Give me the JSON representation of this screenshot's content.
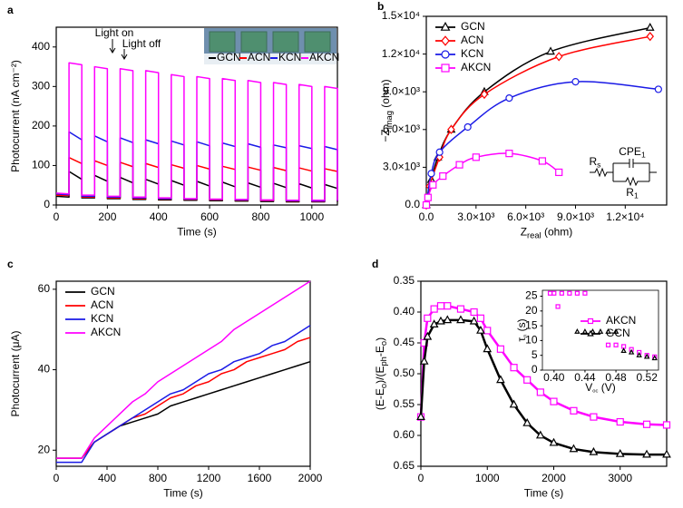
{
  "chart_data": [
    {
      "type": "line",
      "panel_label": "a",
      "xlabel": [
        "Time (s)"
      ],
      "ylabel": [
        "Photocurrent (nA cm⁻²)"
      ],
      "xlim": [
        0,
        1100
      ],
      "xticks": [
        0,
        200,
        400,
        600,
        800,
        1000
      ],
      "ylim": [
        0,
        450
      ],
      "yticks": [
        0,
        100,
        200,
        300,
        400
      ],
      "annotations": [
        [
          "Light on"
        ],
        [
          "Light off"
        ]
      ],
      "legend": "upper right",
      "x": [
        0,
        50,
        50,
        100,
        100,
        150,
        150,
        200,
        200,
        250,
        250,
        300,
        300,
        350,
        350,
        400,
        400,
        450,
        450,
        500,
        500,
        550,
        550,
        600,
        600,
        650,
        650,
        700,
        700,
        750,
        750,
        800,
        800,
        850,
        850,
        900,
        900,
        950,
        950,
        1000,
        1000,
        1050,
        1050,
        1100,
        1100
      ],
      "series": [
        {
          "name": "GCN",
          "color": "#000000",
          "values": [
            22,
            20,
            85,
            65,
            18,
            18,
            75,
            60,
            16,
            16,
            70,
            56,
            14,
            14,
            65,
            53,
            13,
            13,
            62,
            50,
            12,
            12,
            60,
            48,
            11,
            11,
            58,
            46,
            10,
            10,
            56,
            45,
            9,
            9,
            55,
            44,
            8,
            8,
            54,
            43,
            8,
            8,
            52,
            42,
            8
          ]
        },
        {
          "name": "ACN",
          "color": "#ff0000",
          "values": [
            25,
            24,
            120,
            105,
            20,
            20,
            112,
            100,
            18,
            18,
            108,
            97,
            16,
            16,
            105,
            95,
            15,
            15,
            102,
            93,
            14,
            14,
            100,
            91,
            13,
            13,
            98,
            90,
            12,
            12,
            96,
            88,
            11,
            11,
            95,
            87,
            10,
            10,
            94,
            86,
            9,
            9,
            92,
            85,
            9
          ]
        },
        {
          "name": "KCN",
          "color": "#1a1ae6",
          "values": [
            28,
            26,
            185,
            165,
            22,
            22,
            175,
            160,
            20,
            20,
            170,
            158,
            18,
            18,
            165,
            155,
            16,
            16,
            162,
            152,
            15,
            15,
            160,
            150,
            14,
            14,
            157,
            148,
            13,
            13,
            155,
            146,
            12,
            12,
            152,
            145,
            11,
            11,
            150,
            143,
            10,
            10,
            148,
            140,
            10
          ]
        },
        {
          "name": "AKCN",
          "color": "#ff00ff",
          "values": [
            30,
            28,
            360,
            355,
            25,
            25,
            350,
            345,
            22,
            22,
            345,
            340,
            20,
            20,
            340,
            335,
            18,
            18,
            330,
            325,
            16,
            16,
            325,
            320,
            15,
            15,
            320,
            315,
            14,
            14,
            315,
            310,
            13,
            13,
            310,
            305,
            12,
            12,
            305,
            300,
            12,
            12,
            300,
            295,
            12
          ]
        }
      ]
    },
    {
      "type": "scatter",
      "panel_label": "b",
      "fit": true,
      "xlabel": [
        "Z",
        "real",
        " (ohm)"
      ],
      "ylabel": [
        "−Z",
        "imag",
        " (ohm)"
      ],
      "xlim": [
        0,
        14500
      ],
      "xticks": [
        {
          "value": 0,
          "label": "0.0"
        },
        {
          "value": 3000,
          "label": "3.0×10³"
        },
        {
          "value": 6000,
          "label": "6.0×10³"
        },
        {
          "value": 9000,
          "label": "9.0×10³"
        },
        {
          "value": 12000,
          "label": "1.2×10⁴"
        }
      ],
      "ylim": [
        0,
        15000
      ],
      "yticks": [
        {
          "value": 0,
          "label": "0.0"
        },
        {
          "value": 3000,
          "label": "3.0×10³"
        },
        {
          "value": 6000,
          "label": "6.0×10³"
        },
        {
          "value": 9000,
          "label": "9.0×10³"
        },
        {
          "value": 12000,
          "label": "1.2×10⁴"
        },
        {
          "value": 15000,
          "label": "1.5×10⁴"
        }
      ],
      "annotations": [
        [
          "R",
          "s"
        ],
        [
          "CPE",
          "1"
        ],
        [
          "R",
          "1"
        ]
      ],
      "legend": "upper left",
      "series": [
        {
          "name": "GCN",
          "color": "#000000",
          "marker": "triangle",
          "x": [
            0,
            300,
            700,
            1500,
            3500,
            7500,
            13500
          ],
          "values": [
            0,
            2000,
            3800,
            6000,
            9000,
            12200,
            14100
          ]
        },
        {
          "name": "ACN",
          "color": "#ff0000",
          "marker": "diamond",
          "x": [
            0,
            200,
            800,
            1500,
            3500,
            8000,
            13500
          ],
          "values": [
            0,
            1500,
            3800,
            6000,
            8800,
            11800,
            13400
          ]
        },
        {
          "name": "KCN",
          "color": "#1a1ae6",
          "marker": "circle",
          "x": [
            0,
            300,
            800,
            2500,
            5000,
            9000,
            14000
          ],
          "values": [
            0,
            2500,
            4200,
            6200,
            8500,
            9800,
            9200
          ]
        },
        {
          "name": "AKCN",
          "color": "#ff00ff",
          "marker": "square",
          "x": [
            0,
            100,
            400,
            1000,
            2000,
            3000,
            5000,
            7000,
            8000
          ],
          "values": [
            0,
            600,
            1600,
            2300,
            3200,
            3800,
            4100,
            3500,
            2600
          ]
        }
      ]
    },
    {
      "type": "line",
      "panel_label": "c",
      "xlabel": [
        "Time (s)"
      ],
      "ylabel": [
        "Photocurrent (μA)"
      ],
      "xlim": [
        0,
        2000
      ],
      "xticks": [
        0,
        400,
        800,
        1200,
        1600,
        2000
      ],
      "ylim": [
        16,
        62
      ],
      "yticks": [
        20,
        40,
        60
      ],
      "legend": "upper left",
      "x": [
        0,
        100,
        200,
        300,
        400,
        500,
        600,
        700,
        800,
        900,
        1000,
        1100,
        1200,
        1300,
        1400,
        1500,
        1600,
        1700,
        1800,
        1900,
        2000
      ],
      "series": [
        {
          "name": "GCN",
          "color": "#000000",
          "values": [
            18,
            18,
            18,
            22,
            24,
            26,
            27,
            28,
            29,
            31,
            32,
            33,
            34,
            35,
            36,
            37,
            38,
            39,
            40,
            41,
            42
          ]
        },
        {
          "name": "ACN",
          "color": "#ff0000",
          "values": [
            18,
            18,
            18,
            22,
            24,
            26,
            28,
            29,
            31,
            33,
            34,
            36,
            37,
            39,
            40,
            42,
            43,
            44,
            45,
            47,
            48
          ]
        },
        {
          "name": "KCN",
          "color": "#1a1ae6",
          "values": [
            17,
            17,
            17,
            22,
            24,
            26,
            28,
            30,
            32,
            34,
            35,
            37,
            39,
            40,
            42,
            43,
            44,
            46,
            47,
            49,
            51
          ]
        },
        {
          "name": "AKCN",
          "color": "#ff00ff",
          "values": [
            18,
            18,
            18,
            23,
            26,
            29,
            32,
            34,
            37,
            39,
            41,
            43,
            45,
            47,
            50,
            52,
            54,
            56,
            58,
            60,
            62
          ]
        }
      ]
    },
    {
      "type": "line",
      "panel_label": "d",
      "xlabel": [
        "Time (s)"
      ],
      "ylabel": [
        "(E-E",
        "o",
        ")/(E",
        "ph",
        "-E",
        "o",
        ")"
      ],
      "xlim": [
        0,
        3700
      ],
      "xticks": [
        0,
        1000,
        2000,
        3000
      ],
      "ylim": [
        0.65,
        0.35
      ],
      "yticks": [
        0.35,
        {
          "value": 0.4,
          "label": "0.40"
        },
        0.45,
        {
          "value": 0.5,
          "label": "0.50"
        },
        0.55,
        {
          "value": 0.6,
          "label": "0.60"
        },
        0.65
      ],
      "x": [
        0,
        50,
        100,
        200,
        300,
        400,
        600,
        800,
        900,
        1000,
        1200,
        1400,
        1600,
        1800,
        2000,
        2300,
        2600,
        3000,
        3400,
        3700
      ],
      "series": [
        {
          "color": "#ff00ff",
          "marker": "square",
          "values": [
            0.57,
            0.45,
            0.41,
            0.395,
            0.39,
            0.39,
            0.395,
            0.4,
            0.41,
            0.43,
            0.46,
            0.49,
            0.51,
            0.53,
            0.545,
            0.56,
            0.57,
            0.578,
            0.582,
            0.583
          ]
        },
        {
          "color": "#000000",
          "marker": "triangle",
          "values": [
            0.57,
            0.48,
            0.44,
            0.42,
            0.415,
            0.413,
            0.413,
            0.415,
            0.43,
            0.46,
            0.51,
            0.55,
            0.58,
            0.6,
            0.612,
            0.622,
            0.627,
            0.63,
            0.631,
            0.631
          ]
        }
      ]
    },
    {
      "type": "scatter",
      "xlabel": [
        "V",
        "oc",
        " (V)"
      ],
      "ylabel": [
        "τ",
        "n",
        " (s)"
      ],
      "xlim": [
        0.385,
        0.535
      ],
      "xticks": [
        {
          "value": 0.4,
          "label": "0.40"
        },
        0.44,
        0.48,
        0.52
      ],
      "ylim": [
        0,
        27
      ],
      "yticks": [
        0,
        5,
        10,
        15,
        20,
        25
      ],
      "legend": "center right",
      "series": [
        {
          "name": "AKCN",
          "color": "#ff00ff",
          "marker": "square",
          "x": [
            0.395,
            0.4,
            0.41,
            0.42,
            0.43,
            0.44,
            0.405,
            0.47,
            0.48,
            0.49,
            0.5,
            0.51,
            0.52,
            0.53
          ],
          "values": [
            26,
            26,
            26,
            26,
            26,
            26,
            21.5,
            8.5,
            8.5,
            8,
            7,
            6,
            5,
            4.5
          ]
        },
        {
          "name": "GCN",
          "color": "#000000",
          "marker": "triangle",
          "x": [
            0.43,
            0.44,
            0.45,
            0.46,
            0.47,
            0.48,
            0.49,
            0.5,
            0.51,
            0.52,
            0.53
          ],
          "values": [
            13,
            13,
            13,
            13,
            13,
            13,
            6.5,
            6,
            5,
            4.5,
            4
          ]
        }
      ]
    }
  ]
}
